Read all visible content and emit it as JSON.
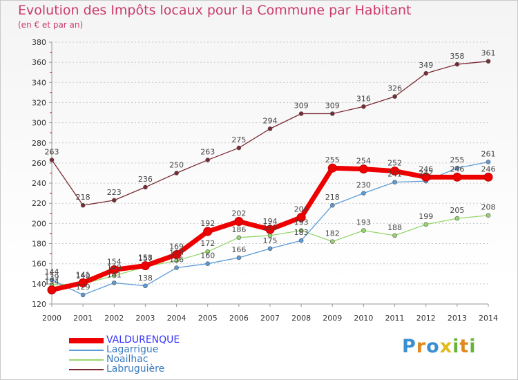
{
  "header": {
    "title": "Evolution des Impôts locaux pour la Commune par Habitant",
    "subtitle": "(en € et par an)"
  },
  "logo": {
    "letters": [
      "P",
      "r",
      "o",
      "x",
      "i",
      "t",
      "i"
    ],
    "colors": [
      "#3a8fd1",
      "#e08a1e",
      "#3a8fd1",
      "#e2bb1c",
      "#69b33b",
      "#e08a1e",
      "#69b33b"
    ]
  },
  "chart_data": {
    "type": "line",
    "x": [
      2000,
      2001,
      2002,
      2003,
      2004,
      2005,
      2006,
      2007,
      2008,
      2009,
      2010,
      2011,
      2012,
      2013,
      2014
    ],
    "ylim": [
      120,
      380
    ],
    "yticks": [
      120,
      140,
      160,
      180,
      200,
      220,
      240,
      260,
      280,
      300,
      320,
      340,
      360,
      380
    ],
    "grid": "horizontal dashed",
    "legend_placement": "bottom-left",
    "series": [
      {
        "name": "Labruguière",
        "color": "#7a2a33",
        "values": [
          263,
          218,
          223,
          236,
          250,
          263,
          275,
          294,
          309,
          309,
          316,
          326,
          349,
          358,
          361
        ],
        "labels": [
          "263",
          "218",
          "223",
          "236",
          "250",
          "263",
          "275",
          "294",
          "309",
          "309",
          "316",
          "326",
          "349",
          "358",
          "361"
        ]
      },
      {
        "name": "Noailhac",
        "color": "#96d76c",
        "values": [
          139,
          140,
          148,
          157,
          163,
          172,
          186,
          188,
          193,
          182,
          193,
          188,
          199,
          205,
          208
        ],
        "labels": [
          "139",
          "140",
          "148",
          "157",
          "163",
          "172",
          "186",
          "188",
          "193",
          "182",
          "193",
          "188",
          "199",
          "205",
          "208"
        ]
      },
      {
        "name": "Lagarrigue",
        "color": "#5b9bd5",
        "values": [
          144,
          129,
          141,
          138,
          156,
          160,
          166,
          175,
          183,
          218,
          230,
          241,
          242,
          255,
          261
        ],
        "labels": [
          "144",
          "129",
          "141",
          "138",
          "156",
          "160",
          "166",
          "175",
          "183",
          "218",
          "230",
          "241",
          "242",
          "255",
          "261"
        ]
      },
      {
        "name": "VALDURENQUE",
        "color": "#ee0000",
        "values": [
          134,
          141,
          154,
          158,
          169,
          192,
          202,
          194,
          206,
          255,
          254,
          252,
          246,
          246,
          246
        ],
        "labels": [
          "134",
          "141",
          "154",
          "158",
          "169",
          "192",
          "202",
          "194",
          "206",
          "255",
          "254",
          "252",
          "246",
          "246",
          "246"
        ]
      }
    ]
  }
}
